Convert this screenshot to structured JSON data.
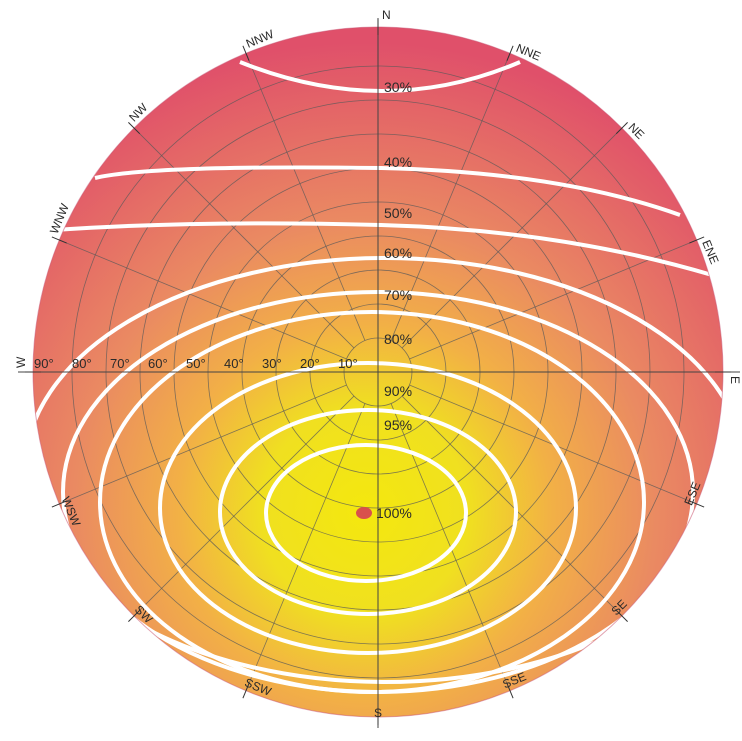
{
  "diagram": {
    "colors": {
      "center": "#f4e80e",
      "mid": "#f2b046",
      "edge": "#e0506a",
      "contour": "#ffffff",
      "grid": "#5a5a5a",
      "marker": "#d9504c"
    },
    "marker_label": "100%",
    "contour_labels": [
      "30%",
      "40%",
      "50%",
      "60%",
      "70%",
      "80%",
      "90%",
      "95%"
    ],
    "altitude_labels": [
      "90°",
      "80°",
      "70°",
      "60°",
      "50°",
      "40°",
      "30°",
      "20°",
      "10°"
    ],
    "compass": {
      "N": "N",
      "NNE": "NNE",
      "NE": "NE",
      "ENE": "ENE",
      "E": "E",
      "ESE": "ESE",
      "SE": "SE",
      "SSE": "SSE",
      "S": "S",
      "SSW": "SSW",
      "SW": "SW",
      "WSW": "WSW",
      "W": "W",
      "WNW": "WNW",
      "NW": "NW",
      "NNW": "NNW"
    }
  }
}
